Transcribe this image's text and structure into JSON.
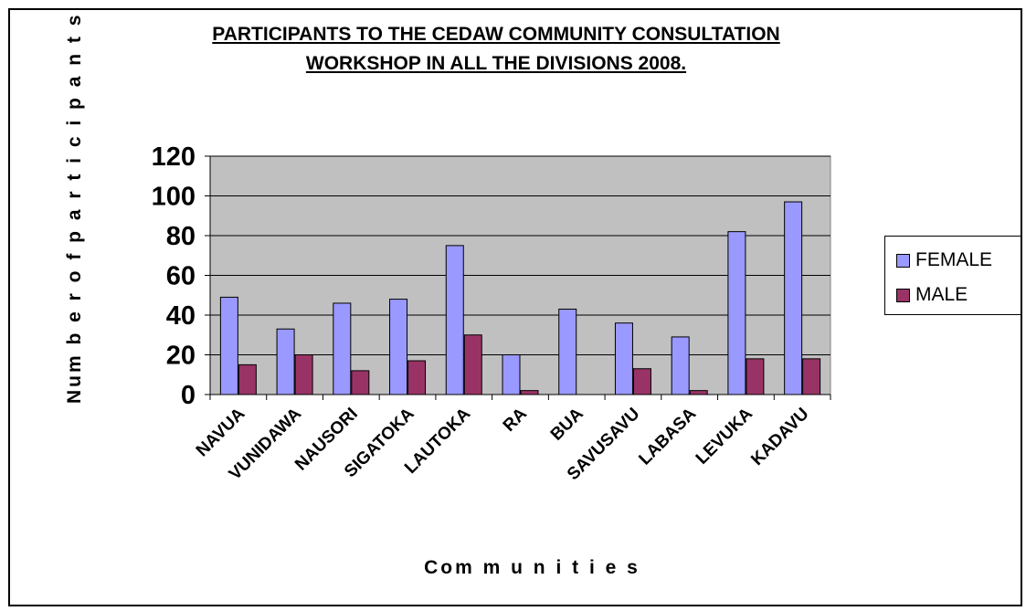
{
  "chart_data": {
    "type": "bar",
    "title_line1": "PARTICIPANTS TO THE CEDAW COMMUNITY CONSULTATION",
    "title_line2": "WORKSHOP IN ALL THE DIVISIONS 2008.",
    "xlabel": "Com m u n i t i e s",
    "ylabel": "Num b e r  o f  p a r t i c i p a n t s",
    "ylim": [
      0,
      120
    ],
    "yticks": [
      "0",
      "20",
      "40",
      "60",
      "80",
      "100",
      "120"
    ],
    "categories": [
      "NAVUA",
      "VUNIDAWA",
      "NAUSORI",
      "SIGATOKA",
      "LAUTOKA",
      "RA",
      "BUA",
      "SAVUSAVU",
      "LABASA",
      "LEVUKA",
      "KADAVU"
    ],
    "series": [
      {
        "name": "FEMALE",
        "color": "#9999ff",
        "values": [
          49,
          33,
          46,
          48,
          75,
          20,
          43,
          36,
          29,
          82,
          97
        ]
      },
      {
        "name": "MALE",
        "color": "#993366",
        "values": [
          15,
          20,
          12,
          17,
          30,
          2,
          0,
          13,
          2,
          18,
          18
        ]
      }
    ],
    "grid": true,
    "plot_background": "#c0c0c0",
    "legend_position": "right"
  }
}
